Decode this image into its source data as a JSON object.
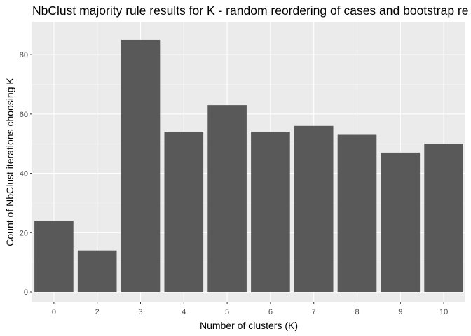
{
  "chart_data": {
    "type": "bar",
    "title": "NbClust majority rule results for K - random reordering of cases and bootstrap re",
    "xlabel": "Number of clusters (K)",
    "ylabel": "Count of NbClust iterations choosing K",
    "categories": [
      "0",
      "2",
      "3",
      "4",
      "5",
      "6",
      "7",
      "8",
      "9",
      "10"
    ],
    "values": [
      24,
      14,
      85,
      54,
      63,
      54,
      56,
      53,
      47,
      50
    ],
    "ylim": [
      0,
      89
    ],
    "yticks": [
      0,
      20,
      40,
      60,
      80
    ],
    "grid": true,
    "legend": "none",
    "colors": {
      "bar": "#595959",
      "panel": "#ebebeb",
      "grid_major": "#ffffff",
      "grid_minor": "#f5f5f5",
      "tick_label": "#4d4d4d",
      "text": "#000000"
    }
  }
}
